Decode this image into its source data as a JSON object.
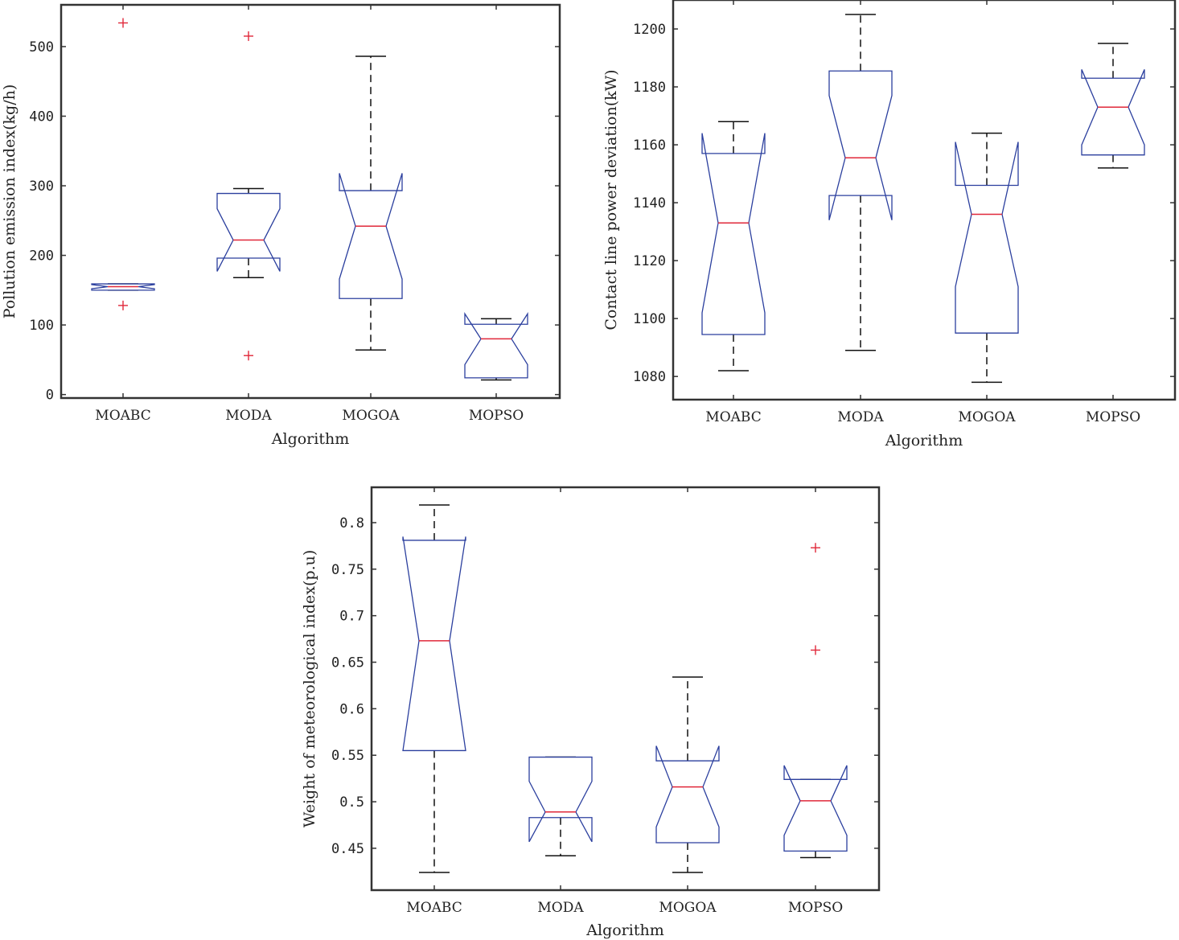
{
  "colors": {
    "box": "#2b3f9e",
    "median": "#e0283a",
    "whisker": "#111111",
    "outlier": "#e0283a",
    "axis": "#333333"
  },
  "chart_data": [
    {
      "type": "boxplot",
      "title": "",
      "xlabel": "Algorithm",
      "ylabel": "Pollution emission index(kg/h)",
      "ylim": [
        -5,
        560
      ],
      "yticks": [
        0,
        100,
        200,
        300,
        400,
        500
      ],
      "categories": [
        "MOABC",
        "MODA",
        "MOGOA",
        "MOPSO"
      ],
      "boxes": [
        {
          "whisker_low": 150,
          "q1": 150,
          "median": 155,
          "q3": 159,
          "whisker_high": 159,
          "notch_low": 152,
          "notch_high": 158,
          "outliers": [
            534,
            128
          ]
        },
        {
          "whisker_low": 168,
          "q1": 196,
          "median": 222,
          "q3": 289,
          "whisker_high": 296,
          "notch_low": 177,
          "notch_high": 267,
          "outliers": [
            515,
            56
          ]
        },
        {
          "whisker_low": 64,
          "q1": 138,
          "median": 242,
          "q3": 293,
          "whisker_high": 486,
          "notch_low": 166,
          "notch_high": 318,
          "outliers": []
        },
        {
          "whisker_low": 21,
          "q1": 24,
          "median": 80,
          "q3": 101,
          "whisker_high": 109,
          "notch_low": 43,
          "notch_high": 116,
          "outliers": []
        }
      ]
    },
    {
      "type": "boxplot",
      "title": "",
      "xlabel": "Algorithm",
      "ylabel": "Contact line power deviation(kW)",
      "ylim": [
        1072,
        1210
      ],
      "yticks": [
        1080,
        1100,
        1120,
        1140,
        1160,
        1180,
        1200
      ],
      "categories": [
        "MOABC",
        "MODA",
        "MOGOA",
        "MOPSO"
      ],
      "boxes": [
        {
          "whisker_low": 1082,
          "q1": 1094.5,
          "median": 1133,
          "q3": 1157,
          "whisker_high": 1168,
          "notch_low": 1102,
          "notch_high": 1164,
          "outliers": []
        },
        {
          "whisker_low": 1089,
          "q1": 1142.5,
          "median": 1155.5,
          "q3": 1185.5,
          "whisker_high": 1205,
          "notch_low": 1134,
          "notch_high": 1177,
          "outliers": []
        },
        {
          "whisker_low": 1078,
          "q1": 1095,
          "median": 1136,
          "q3": 1146,
          "whisker_high": 1164,
          "notch_low": 1111,
          "notch_high": 1161,
          "outliers": []
        },
        {
          "whisker_low": 1152,
          "q1": 1156.5,
          "median": 1173,
          "q3": 1183,
          "whisker_high": 1195,
          "notch_low": 1160,
          "notch_high": 1186,
          "outliers": []
        }
      ]
    },
    {
      "type": "boxplot",
      "title": "",
      "xlabel": "Algorithm",
      "ylabel": "Weight of meteorological index(p.u)",
      "ylim": [
        0.405,
        0.838
      ],
      "yticks": [
        0.45,
        0.5,
        0.55,
        0.6,
        0.65,
        0.7,
        0.75,
        0.8
      ],
      "ytick_labels": [
        "0.45",
        "0.5",
        "0.55",
        "0.6",
        "0.65",
        "0.7",
        "0.75",
        "0.8"
      ],
      "categories": [
        "MOABC",
        "MODA",
        "MOGOA",
        "MOPSO"
      ],
      "boxes": [
        {
          "whisker_low": 0.424,
          "q1": 0.555,
          "median": 0.673,
          "q3": 0.781,
          "whisker_high": 0.819,
          "notch_low": 0.555,
          "notch_high": 0.785,
          "outliers": []
        },
        {
          "whisker_low": 0.442,
          "q1": 0.483,
          "median": 0.489,
          "q3": 0.548,
          "whisker_high": 0.548,
          "notch_low": 0.457,
          "notch_high": 0.522,
          "outliers": []
        },
        {
          "whisker_low": 0.424,
          "q1": 0.456,
          "median": 0.516,
          "q3": 0.544,
          "whisker_high": 0.634,
          "notch_low": 0.473,
          "notch_high": 0.56,
          "outliers": []
        },
        {
          "whisker_low": 0.44,
          "q1": 0.447,
          "median": 0.501,
          "q3": 0.524,
          "whisker_high": 0.524,
          "notch_low": 0.464,
          "notch_high": 0.539,
          "outliers": [
            0.773,
            0.663
          ]
        }
      ]
    }
  ]
}
